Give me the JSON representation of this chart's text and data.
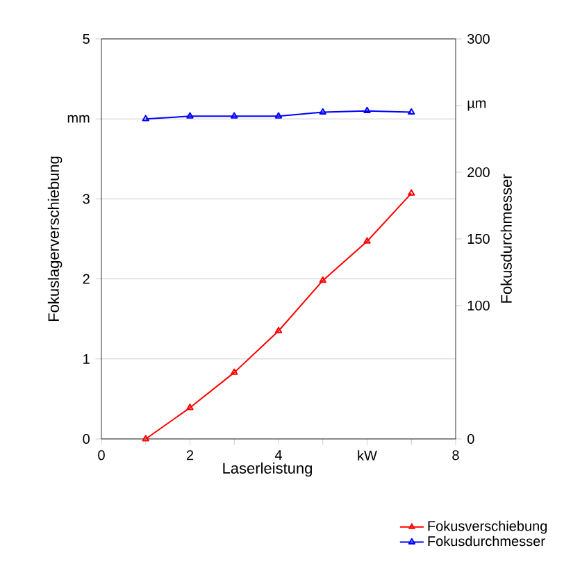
{
  "chart_data": {
    "type": "line",
    "xlabel": "Laserleistung",
    "ylabel": "Fokuslagerverschiebung",
    "y2label": "Fokusdurchmesser",
    "x": [
      1,
      2,
      3,
      4,
      5,
      6,
      7
    ],
    "xlim": [
      0,
      8
    ],
    "xticks": [
      0,
      {
        "value": 1,
        "label": null
      },
      2,
      {
        "value": 3,
        "label": null
      },
      4,
      {
        "value": 5,
        "label": null
      },
      {
        "value": 6,
        "label": "kW"
      },
      {
        "value": 7,
        "label": null
      },
      8
    ],
    "ylim": [
      0,
      5
    ],
    "yticks": [
      0,
      1,
      2,
      3,
      {
        "value": 4,
        "label": "mm"
      },
      5
    ],
    "y2lim": [
      0,
      300
    ],
    "y2ticks": [
      0,
      100,
      150,
      200,
      {
        "value": 250,
        "label": "µm"
      },
      300
    ],
    "series": [
      {
        "name": "Fokusverschiebung",
        "color": "#ff0000",
        "values": [
          0,
          0.39,
          0.83,
          1.35,
          1.98,
          2.47,
          3.07
        ]
      },
      {
        "name": "Fokusdurchmesser",
        "color": "#0000ff",
        "axis": "y2",
        "values": [
          240,
          242,
          242,
          242,
          245,
          246,
          245
        ]
      }
    ],
    "grid": "y",
    "legend": "bottom right",
    "marker": "triangle",
    "line_style": "solid"
  }
}
